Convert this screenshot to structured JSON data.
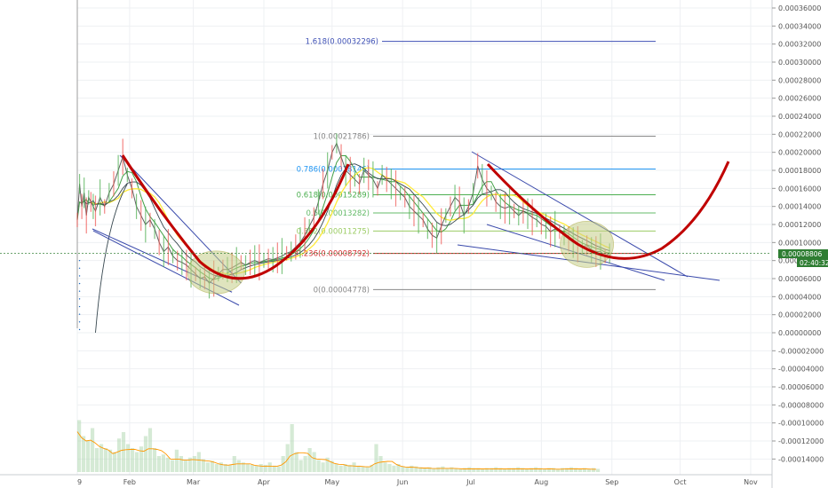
{
  "chart_data": {
    "type": "line",
    "price_axis": {
      "ylim": [
        -0.00015,
        0.00037
      ],
      "ticks": [
        0.00036,
        0.00034,
        0.00032,
        0.0003,
        0.00028,
        0.00026,
        0.00024,
        0.00022,
        0.0002,
        0.00018,
        0.00016,
        0.00014,
        0.00012,
        0.0001,
        8e-05,
        6e-05,
        4e-05,
        2e-05,
        0.0,
        -2e-05,
        -4e-05,
        -6e-05,
        -8e-05,
        -0.0001,
        -0.00012,
        -0.00014
      ],
      "tick_labels": [
        "0.00036000",
        "0.00034000",
        "0.00032000",
        "0.00030000",
        "0.00028000",
        "0.00026000",
        "0.00024000",
        "0.00022000",
        "0.00020000",
        "0.00018000",
        "0.00016000",
        "0.00014000",
        "0.00012000",
        "0.00010000",
        "0.00008000",
        "0.00006000",
        "0.00004000",
        "0.00002000",
        "0.00000000",
        "-0.00002000",
        "-0.00004000",
        "-0.00006000",
        "-0.00008000",
        "-0.00010000",
        "-0.00012000",
        "-0.00014000"
      ]
    },
    "time_axis": {
      "labels": [
        "9",
        "Feb",
        "Mar",
        "Apr",
        "May",
        "Jun",
        "Jul",
        "Aug",
        "Sep",
        "Oct",
        "Nov"
      ],
      "positions": [
        0,
        23,
        51,
        82,
        112,
        143,
        173,
        204,
        235,
        265,
        296
      ],
      "range": [
        0,
        305
      ]
    },
    "last_price": {
      "label": "0.00008806",
      "countdown": "02:40:32",
      "value": 8.806e-05
    },
    "fib_levels": [
      {
        "label": "1.618(0.00032296)",
        "value": 0.00032296,
        "color": "#3f51b5"
      },
      {
        "label": "1(0.00021786)",
        "value": 0.00021786,
        "color": "#888888"
      },
      {
        "label": "0.786(0.00018146)",
        "value": 0.00018146,
        "color": "#2196f3"
      },
      {
        "label": "0.618(0.00015289)",
        "value": 0.00015289,
        "color": "#4caf50"
      },
      {
        "label": "0.5(0.00013282)",
        "value": 0.00013282,
        "color": "#66bb6a"
      },
      {
        "label": "0.382(0.00011275)",
        "value": 0.00011275,
        "color": "#9ccc65"
      },
      {
        "label": "0.236(0.00008792)",
        "value": 8.792e-05,
        "color": "#d32f2f"
      },
      {
        "label": "0(0.00004778)",
        "value": 4.778e-05,
        "color": "#888888"
      }
    ],
    "series": [
      {
        "values": [
          [
            0,
            0.000125
          ],
          [
            1,
            0.000165
          ],
          [
            2,
            0.00014
          ],
          [
            3,
            0.000155
          ],
          [
            4,
            0.00013
          ],
          [
            5,
            0.00015
          ],
          [
            6,
            0.000145
          ],
          [
            7,
            0.00014
          ],
          [
            8,
            0.000135
          ],
          [
            10,
            0.00015
          ],
          [
            12,
            0.00014
          ],
          [
            14,
            0.000155
          ],
          [
            16,
            0.000165
          ],
          [
            18,
            0.00018
          ],
          [
            20,
            0.000195
          ],
          [
            22,
            0.000175
          ],
          [
            24,
            0.00016
          ],
          [
            26,
            0.00014
          ],
          [
            28,
            0.00013
          ],
          [
            30,
            0.00012
          ],
          [
            32,
            0.000125
          ],
          [
            34,
            0.000115
          ],
          [
            36,
            0.0001
          ],
          [
            38,
            9e-05
          ],
          [
            40,
            9.5e-05
          ],
          [
            42,
            8.5e-05
          ],
          [
            44,
            8e-05
          ],
          [
            46,
            7.8e-05
          ],
          [
            48,
            7.5e-05
          ],
          [
            50,
            7e-05
          ],
          [
            52,
            6.5e-05
          ],
          [
            54,
            6e-05
          ],
          [
            56,
            6.2e-05
          ],
          [
            58,
            5.5e-05
          ],
          [
            60,
            6e-05
          ],
          [
            62,
            6.5e-05
          ],
          [
            64,
            7e-05
          ],
          [
            66,
            7e-05
          ],
          [
            68,
            7.2e-05
          ],
          [
            70,
            7.5e-05
          ],
          [
            72,
            7.8e-05
          ],
          [
            74,
            7.5e-05
          ],
          [
            76,
            7.8e-05
          ],
          [
            78,
            8e-05
          ],
          [
            80,
            7.8e-05
          ],
          [
            82,
            8e-05
          ],
          [
            84,
            8.2e-05
          ],
          [
            86,
            8.1e-05
          ],
          [
            88,
            8.3e-05
          ],
          [
            90,
            8.5e-05
          ],
          [
            92,
            8.8e-05
          ],
          [
            94,
            9e-05
          ],
          [
            96,
            9.5e-05
          ],
          [
            98,
            0.0001
          ],
          [
            100,
            0.000108
          ],
          [
            102,
            0.000118
          ],
          [
            104,
            0.000128
          ],
          [
            106,
            0.000145
          ],
          [
            108,
            0.000165
          ],
          [
            110,
            0.00018
          ],
          [
            112,
            0.0002
          ],
          [
            114,
            0.00021
          ],
          [
            116,
            0.000195
          ],
          [
            118,
            0.00018
          ],
          [
            120,
            0.000175
          ],
          [
            122,
            0.00017
          ],
          [
            124,
            0.000165
          ],
          [
            126,
            0.00018
          ],
          [
            128,
            0.000175
          ],
          [
            130,
            0.00017
          ],
          [
            132,
            0.00016
          ],
          [
            134,
            0.000175
          ],
          [
            136,
            0.00017
          ],
          [
            138,
            0.000165
          ],
          [
            140,
            0.00016
          ],
          [
            142,
            0.000155
          ],
          [
            144,
            0.00015
          ],
          [
            146,
            0.00014
          ],
          [
            148,
            0.000135
          ],
          [
            150,
            0.00013
          ],
          [
            152,
            0.000125
          ],
          [
            154,
            0.000115
          ],
          [
            156,
            0.000108
          ],
          [
            158,
            0.000105
          ],
          [
            160,
            0.000118
          ],
          [
            162,
            0.00013
          ],
          [
            164,
            0.00014
          ],
          [
            166,
            0.00015
          ],
          [
            168,
            0.000145
          ],
          [
            170,
            0.00013
          ],
          [
            172,
            0.00014
          ],
          [
            174,
            0.000155
          ],
          [
            176,
            0.000185
          ],
          [
            178,
            0.00017
          ],
          [
            180,
            0.00016
          ],
          [
            182,
            0.000155
          ],
          [
            184,
            0.000145
          ],
          [
            186,
            0.00014
          ],
          [
            188,
            0.000138
          ],
          [
            190,
            0.00014
          ],
          [
            192,
            0.000135
          ],
          [
            194,
            0.00013
          ],
          [
            196,
            0.000135
          ],
          [
            198,
            0.000132
          ],
          [
            200,
            0.000128
          ],
          [
            202,
            0.000125
          ],
          [
            204,
            0.00012
          ],
          [
            206,
            0.000118
          ],
          [
            208,
            0.000112
          ],
          [
            210,
            0.000115
          ],
          [
            212,
            0.000112
          ],
          [
            214,
            0.000108
          ],
          [
            216,
            0.000104
          ],
          [
            218,
            0.0001
          ],
          [
            220,
            9.8e-05
          ],
          [
            222,
            9.5e-05
          ],
          [
            224,
            9.7e-05
          ],
          [
            226,
            9.2e-05
          ],
          [
            228,
            9e-05
          ],
          [
            230,
            9e-05
          ],
          [
            232,
            8.5e-05
          ],
          [
            234,
            8.8e-05
          ]
        ]
      }
    ],
    "volume": [
      0.65,
      0.45,
      0.4,
      0.55,
      0.3,
      0.35,
      0.3,
      0.28,
      0.25,
      0.42,
      0.5,
      0.35,
      0.3,
      0.25,
      0.32,
      0.45,
      0.55,
      0.3,
      0.2,
      0.22,
      0.18,
      0.15,
      0.28,
      0.2,
      0.15,
      0.18,
      0.2,
      0.25,
      0.16,
      0.12,
      0.14,
      0.1,
      0.12,
      0.1,
      0.09,
      0.2,
      0.15,
      0.12,
      0.1,
      0.09,
      0.08,
      0.1,
      0.09,
      0.12,
      0.08,
      0.07,
      0.2,
      0.35,
      0.6,
      0.25,
      0.15,
      0.2,
      0.3,
      0.25,
      0.15,
      0.12,
      0.18,
      0.14,
      0.1,
      0.08,
      0.1,
      0.09,
      0.12,
      0.08,
      0.07,
      0.06,
      0.09,
      0.35,
      0.2,
      0.12,
      0.1,
      0.08,
      0.1,
      0.07,
      0.06,
      0.08,
      0.07,
      0.06,
      0.05,
      0.06,
      0.05,
      0.06,
      0.07,
      0.05,
      0.06,
      0.05,
      0.04,
      0.05,
      0.06,
      0.05,
      0.05,
      0.04,
      0.05,
      0.05,
      0.06,
      0.05,
      0.04,
      0.05,
      0.05,
      0.06,
      0.05,
      0.04,
      0.05,
      0.06,
      0.05,
      0.04,
      0.05,
      0.05,
      0.04,
      0.05,
      0.05,
      0.06,
      0.05,
      0.04,
      0.05,
      0.04,
      0.05,
      0.04
    ]
  }
}
